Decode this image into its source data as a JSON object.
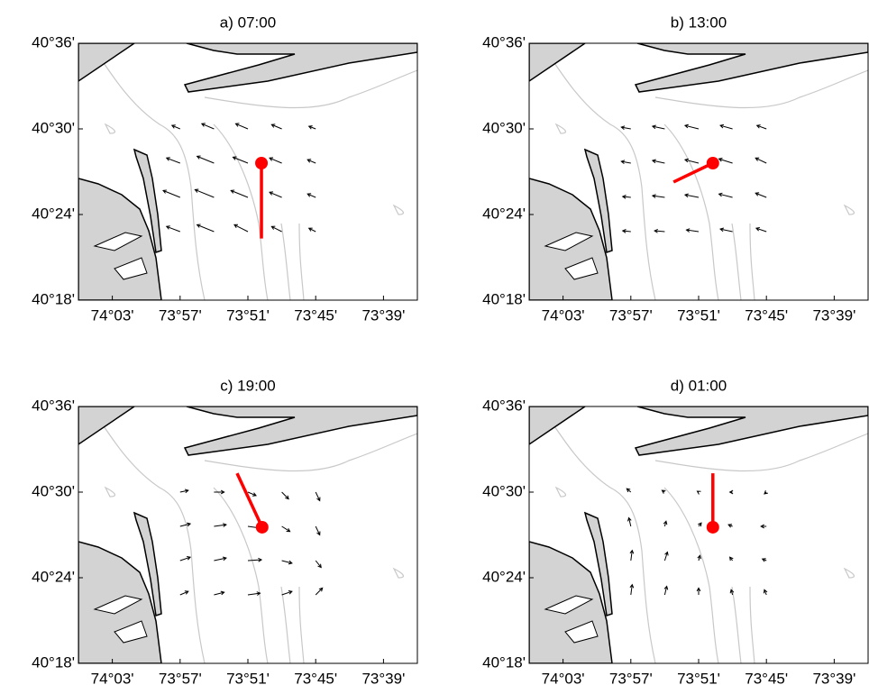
{
  "chart_data": [
    {
      "type": "quiver",
      "title": "a) 07:00",
      "color": "#000000",
      "highlight_color": "#ff0000",
      "xlim": [
        -74.1,
        -73.6
      ],
      "ylim": [
        40.3,
        40.6
      ],
      "xticks": [
        {
          "value": -74.05,
          "label": "74°03'"
        },
        {
          "value": -73.95,
          "label": "73°57'"
        },
        {
          "value": -73.85,
          "label": "73°51'"
        },
        {
          "value": -73.75,
          "label": "73°45'"
        },
        {
          "value": -73.65,
          "label": "73°39'"
        }
      ],
      "yticks": [
        {
          "value": 40.3,
          "label": "40°18'"
        },
        {
          "value": 40.4,
          "label": "40°24'"
        },
        {
          "value": 40.5,
          "label": "40°30'"
        },
        {
          "value": 40.6,
          "label": "40°36'"
        }
      ],
      "arrows": {
        "x": [
          -73.95,
          -73.9,
          -73.85,
          -73.8,
          -73.75,
          -73.95,
          -73.9,
          -73.85,
          -73.8,
          -73.75,
          -73.95,
          -73.9,
          -73.85,
          -73.8,
          -73.75,
          -73.95,
          -73.9,
          -73.85,
          -73.8,
          -73.75
        ],
        "y": [
          40.38,
          40.38,
          40.38,
          40.38,
          40.38,
          40.42,
          40.42,
          40.42,
          40.42,
          40.42,
          40.46,
          40.46,
          40.46,
          40.46,
          40.46,
          40.5,
          40.5,
          40.5,
          40.5,
          40.5
        ],
        "u": [
          -0.02,
          -0.025,
          -0.02,
          -0.015,
          -0.01,
          -0.025,
          -0.028,
          -0.025,
          -0.018,
          -0.012,
          -0.02,
          -0.025,
          -0.022,
          -0.018,
          -0.012,
          -0.012,
          -0.018,
          -0.018,
          -0.015,
          -0.01
        ],
        "v": [
          0.006,
          0.008,
          0.008,
          0.006,
          0.004,
          0.008,
          0.009,
          0.008,
          0.006,
          0.004,
          0.006,
          0.008,
          0.007,
          0.006,
          0.004,
          0.004,
          0.006,
          0.006,
          0.005,
          0.003
        ]
      },
      "red_vector": {
        "x0": -73.83,
        "y0": 40.46,
        "x1": -73.83,
        "y1": 40.372
      }
    },
    {
      "type": "quiver",
      "title": "b) 13:00",
      "color": "#000000",
      "highlight_color": "#ff0000",
      "xlim": [
        -74.1,
        -73.6
      ],
      "ylim": [
        40.3,
        40.6
      ],
      "xticks": [
        {
          "value": -74.05,
          "label": "74°03'"
        },
        {
          "value": -73.95,
          "label": "73°57'"
        },
        {
          "value": -73.85,
          "label": "73°51'"
        },
        {
          "value": -73.75,
          "label": "73°45'"
        },
        {
          "value": -73.65,
          "label": "73°39'"
        }
      ],
      "yticks": [
        {
          "value": 40.3,
          "label": "40°18'"
        },
        {
          "value": 40.4,
          "label": "40°24'"
        },
        {
          "value": 40.5,
          "label": "40°30'"
        },
        {
          "value": 40.6,
          "label": "40°36'"
        }
      ],
      "arrows": {
        "x": [
          -73.95,
          -73.9,
          -73.85,
          -73.8,
          -73.75,
          -73.95,
          -73.9,
          -73.85,
          -73.8,
          -73.75,
          -73.95,
          -73.9,
          -73.85,
          -73.8,
          -73.75,
          -73.95,
          -73.9,
          -73.85,
          -73.8,
          -73.75
        ],
        "y": [
          40.38,
          40.38,
          40.38,
          40.38,
          40.38,
          40.42,
          40.42,
          40.42,
          40.42,
          40.42,
          40.46,
          40.46,
          40.46,
          40.46,
          40.46,
          40.5,
          40.5,
          40.5,
          40.5,
          40.5
        ],
        "u": [
          -0.012,
          -0.015,
          -0.018,
          -0.018,
          -0.015,
          -0.012,
          -0.018,
          -0.02,
          -0.02,
          -0.016,
          -0.014,
          -0.018,
          -0.02,
          -0.02,
          -0.016,
          -0.014,
          -0.018,
          -0.02,
          -0.018,
          -0.014
        ],
        "v": [
          0.001,
          0.001,
          0.002,
          0.003,
          0.004,
          0.001,
          0.002,
          0.003,
          0.004,
          0.005,
          0.002,
          0.003,
          0.004,
          0.005,
          0.006,
          0.002,
          0.003,
          0.004,
          0.004,
          0.004
        ]
      },
      "red_vector": {
        "x0": -73.829,
        "y0": 40.46,
        "x1": -73.887,
        "y1": 40.438
      }
    },
    {
      "type": "quiver",
      "title": "c) 19:00",
      "color": "#000000",
      "highlight_color": "#ff0000",
      "xlim": [
        -74.1,
        -73.6
      ],
      "ylim": [
        40.3,
        40.6
      ],
      "xticks": [
        {
          "value": -74.05,
          "label": "74°03'"
        },
        {
          "value": -73.95,
          "label": "73°57'"
        },
        {
          "value": -73.85,
          "label": "73°51'"
        },
        {
          "value": -73.75,
          "label": "73°45'"
        },
        {
          "value": -73.65,
          "label": "73°39'"
        }
      ],
      "yticks": [
        {
          "value": 40.3,
          "label": "40°18'"
        },
        {
          "value": 40.4,
          "label": "40°24'"
        },
        {
          "value": 40.5,
          "label": "40°30'"
        },
        {
          "value": 40.6,
          "label": "40°36'"
        }
      ],
      "arrows": {
        "x": [
          -73.95,
          -73.9,
          -73.85,
          -73.8,
          -73.75,
          -73.95,
          -73.9,
          -73.85,
          -73.8,
          -73.75,
          -73.95,
          -73.9,
          -73.85,
          -73.8,
          -73.75,
          -73.95,
          -73.9,
          -73.85,
          -73.8,
          -73.75
        ],
        "y": [
          40.38,
          40.38,
          40.38,
          40.38,
          40.38,
          40.42,
          40.42,
          40.42,
          40.42,
          40.42,
          40.46,
          40.46,
          40.46,
          40.46,
          40.46,
          40.5,
          40.5,
          40.5,
          40.5,
          40.5
        ],
        "u": [
          0.012,
          0.015,
          0.018,
          0.015,
          0.01,
          0.015,
          0.018,
          0.02,
          0.015,
          0.008,
          0.015,
          0.018,
          0.018,
          0.012,
          0.006,
          0.012,
          0.015,
          0.012,
          0.01,
          0.006
        ],
        "v": [
          0.004,
          0.003,
          0.002,
          0.004,
          0.008,
          0.004,
          0.003,
          0.001,
          -0.003,
          -0.008,
          0.003,
          0.002,
          -0.002,
          -0.006,
          -0.01,
          0.002,
          0,
          -0.004,
          -0.008,
          -0.01
        ]
      },
      "red_vector": {
        "x0": -73.829,
        "y0": 40.459,
        "x1": -73.866,
        "y1": 40.522
      }
    },
    {
      "type": "quiver",
      "title": "d) 01:00",
      "color": "#000000",
      "highlight_color": "#ff0000",
      "xlim": [
        -74.1,
        -73.6
      ],
      "ylim": [
        40.3,
        40.6
      ],
      "xticks": [
        {
          "value": -74.05,
          "label": "74°03'"
        },
        {
          "value": -73.95,
          "label": "73°57'"
        },
        {
          "value": -73.85,
          "label": "73°51'"
        },
        {
          "value": -73.75,
          "label": "73°45'"
        },
        {
          "value": -73.65,
          "label": "73°39'"
        }
      ],
      "yticks": [
        {
          "value": 40.3,
          "label": "40°18'"
        },
        {
          "value": 40.4,
          "label": "40°24'"
        },
        {
          "value": 40.5,
          "label": "40°30'"
        },
        {
          "value": 40.6,
          "label": "40°36'"
        }
      ],
      "arrows": {
        "x": [
          -73.95,
          -73.9,
          -73.85,
          -73.8,
          -73.75,
          -73.95,
          -73.9,
          -73.85,
          -73.8,
          -73.75,
          -73.95,
          -73.9,
          -73.85,
          -73.8,
          -73.75,
          -73.95,
          -73.9,
          -73.85,
          -73.8,
          -73.75
        ],
        "y": [
          40.38,
          40.38,
          40.38,
          40.38,
          40.38,
          40.42,
          40.42,
          40.42,
          40.42,
          40.42,
          40.46,
          40.46,
          40.46,
          40.46,
          40.46,
          40.5,
          40.5,
          40.5,
          40.5,
          40.5
        ],
        "u": [
          0.002,
          0.003,
          0,
          -0.002,
          -0.003,
          0.002,
          0.004,
          0.002,
          -0.004,
          -0.006,
          -0.003,
          0.002,
          0.004,
          -0.006,
          -0.008,
          -0.006,
          -0.004,
          -0.002,
          -0.004,
          -0.003
        ],
        "v": [
          0.012,
          0.01,
          0.008,
          0.006,
          0.006,
          0.012,
          0.01,
          0.006,
          0.004,
          0.002,
          0.01,
          0.006,
          0.004,
          0.002,
          0,
          0.004,
          0.002,
          0.001,
          0,
          -0.002
        ]
      },
      "red_vector": {
        "x0": -73.829,
        "y0": 40.459,
        "x1": -73.829,
        "y1": 40.522
      }
    }
  ]
}
